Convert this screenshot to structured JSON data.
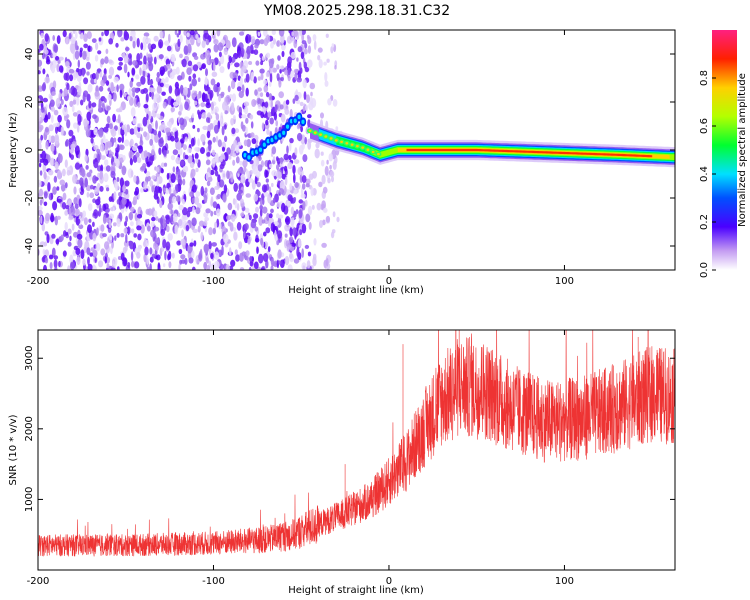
{
  "figure": {
    "title": "YM08.2025.298.18.31.C32"
  },
  "chart_data": [
    {
      "type": "heatmap",
      "name": "spectrogram",
      "xlabel": "Height of straight line (km)",
      "ylabel": "Frequency (Hz)",
      "xlim": [
        -200,
        163
      ],
      "ylim": [
        -50,
        50
      ],
      "xticks": [
        -200,
        -100,
        0,
        100
      ],
      "yticks": [
        -40,
        -20,
        0,
        20,
        40
      ],
      "colorbar": {
        "label": "Normalized spectral amplitude",
        "range": [
          0,
          1
        ],
        "ticks": [
          0.0,
          0.2,
          0.4,
          0.6,
          0.8
        ]
      },
      "ridge": {
        "description_points": [
          {
            "x": -80,
            "y": -3
          },
          {
            "x": -70,
            "y": 2
          },
          {
            "x": -60,
            "y": 8
          },
          {
            "x": -52,
            "y": 14
          },
          {
            "x": -45,
            "y": 8
          },
          {
            "x": -30,
            "y": 4
          },
          {
            "x": -15,
            "y": 1
          },
          {
            "x": -5,
            "y": -2
          },
          {
            "x": 5,
            "y": 0
          },
          {
            "x": 50,
            "y": 0
          },
          {
            "x": 90,
            "y": -1
          },
          {
            "x": 130,
            "y": -2
          },
          {
            "x": 163,
            "y": -3
          }
        ]
      }
    },
    {
      "type": "line",
      "name": "snr",
      "xlabel": "Height of straight line (km)",
      "ylabel": "SNR (10 * v/v)",
      "xlim": [
        -200,
        163
      ],
      "ylim": [
        0,
        3400
      ],
      "xticks": [
        -200,
        -100,
        0,
        100
      ],
      "yticks": [
        1000,
        2000,
        3000
      ],
      "color": "#ee3333",
      "envelope": [
        {
          "x": -200,
          "y": 350
        },
        {
          "x": -150,
          "y": 350
        },
        {
          "x": -100,
          "y": 380
        },
        {
          "x": -70,
          "y": 430
        },
        {
          "x": -55,
          "y": 500
        },
        {
          "x": -40,
          "y": 650
        },
        {
          "x": -25,
          "y": 800
        },
        {
          "x": -10,
          "y": 1000
        },
        {
          "x": 0,
          "y": 1250
        },
        {
          "x": 10,
          "y": 1550
        },
        {
          "x": 20,
          "y": 2000
        },
        {
          "x": 30,
          "y": 2400
        },
        {
          "x": 40,
          "y": 2600
        },
        {
          "x": 55,
          "y": 2550
        },
        {
          "x": 70,
          "y": 2300
        },
        {
          "x": 90,
          "y": 2100
        },
        {
          "x": 110,
          "y": 2150
        },
        {
          "x": 130,
          "y": 2300
        },
        {
          "x": 150,
          "y": 2500
        },
        {
          "x": 163,
          "y": 2450
        }
      ]
    }
  ]
}
